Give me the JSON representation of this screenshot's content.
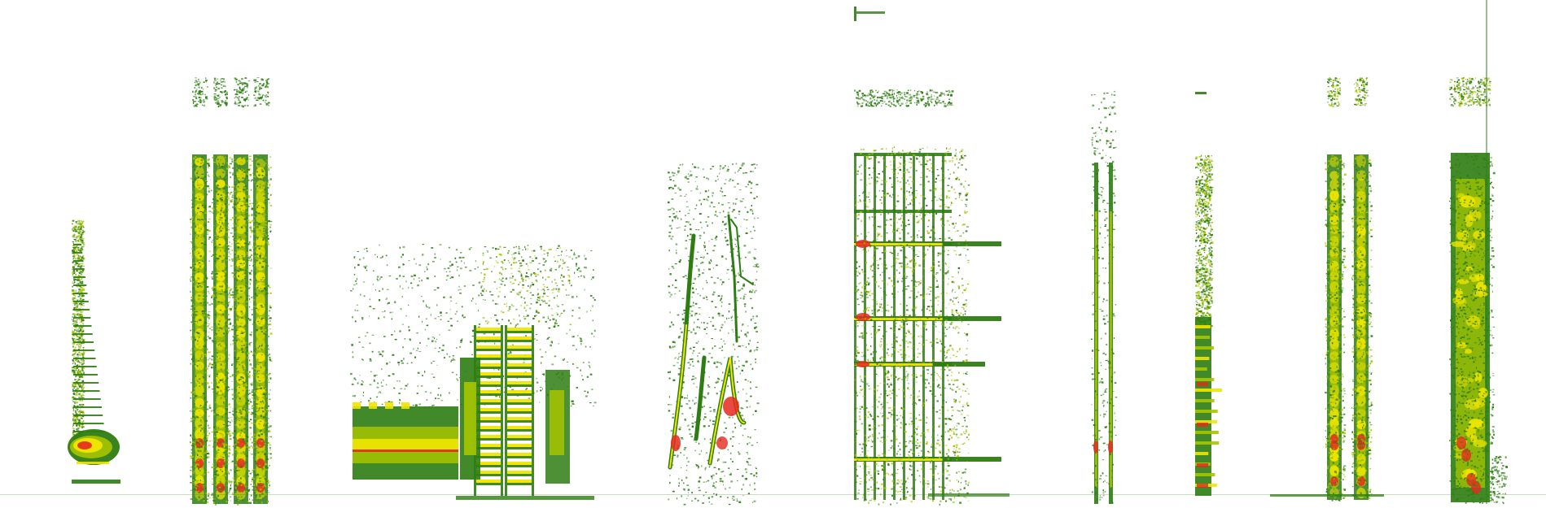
{
  "colors": {
    "background": "#ffffff",
    "low": "#2e7d12",
    "mid": "#a7c400",
    "high": "#f1e600",
    "peak": "#e6291e"
  },
  "panels": [
    {
      "name": "panel-1",
      "kind": "harmonic-tail"
    },
    {
      "name": "panel-2",
      "kind": "four-broadband-bursts"
    },
    {
      "name": "panel-3",
      "kind": "pulse-train-chorus"
    },
    {
      "name": "panel-4",
      "kind": "frequency-modulated-sweeps"
    },
    {
      "name": "panel-5",
      "kind": "multi-harmonic-clicks"
    },
    {
      "name": "panel-6",
      "kind": "thin-paired-streaks"
    },
    {
      "name": "panel-7",
      "kind": "single-dense-column"
    },
    {
      "name": "panel-8",
      "kind": "paired-broadband-columns"
    },
    {
      "name": "panel-9",
      "kind": "wide-broadband-block"
    }
  ]
}
